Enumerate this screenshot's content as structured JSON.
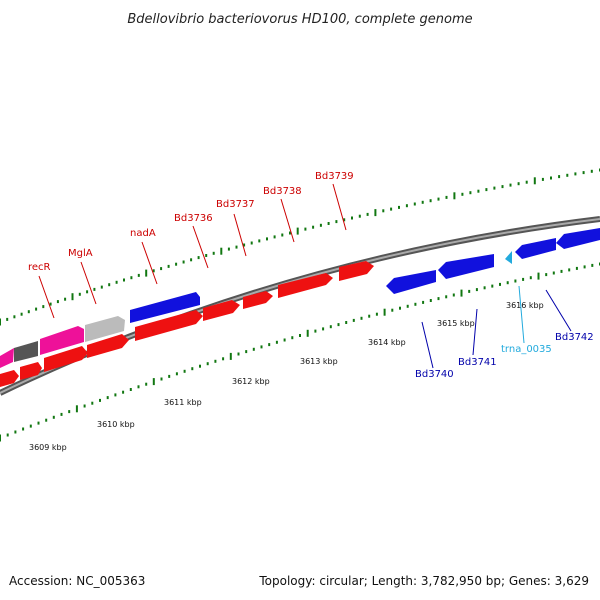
{
  "title": "Bdellovibrio bacteriovorus HD100, complete genome",
  "footer": {
    "accession": "Accession: NC_005363",
    "summary": "Topology: circular; Length: 3,782,950 bp; Genes: 3,629"
  },
  "colors": {
    "forward_label": "#cc0000",
    "reverse_label": "#0000aa",
    "trna_label": "#22aadd",
    "forward_gene": "#ee1111",
    "reverse_gene": "#1111dd",
    "other_gene_magenta": "#ee1199",
    "other_gene_grey": "#bbbbbb",
    "other_gene_darkgrey": "#555555",
    "tick": "#117711",
    "backbone": "#888888"
  },
  "kbp_labels": [
    "3609 kbp",
    "3610 kbp",
    "3611 kbp",
    "3612 kbp",
    "3613 kbp",
    "3614 kbp",
    "3615 kbp",
    "3616 kbp"
  ],
  "gene_labels": [
    {
      "name": "recR",
      "kind": "forward"
    },
    {
      "name": "MglA",
      "kind": "forward"
    },
    {
      "name": "nadA",
      "kind": "forward"
    },
    {
      "name": "Bd3736",
      "kind": "forward"
    },
    {
      "name": "Bd3737",
      "kind": "forward"
    },
    {
      "name": "Bd3738",
      "kind": "forward"
    },
    {
      "name": "Bd3739",
      "kind": "forward"
    },
    {
      "name": "Bd3740",
      "kind": "reverse"
    },
    {
      "name": "Bd3741",
      "kind": "reverse"
    },
    {
      "name": "trna_0035",
      "kind": "trna"
    },
    {
      "name": "Bd3742",
      "kind": "reverse"
    }
  ]
}
